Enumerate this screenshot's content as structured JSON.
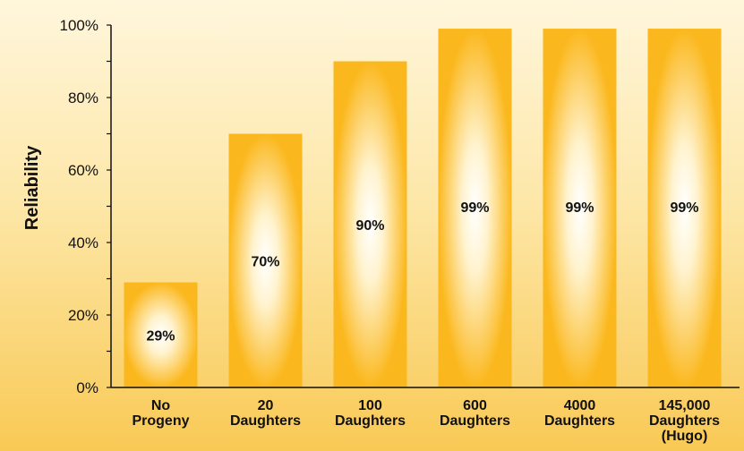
{
  "chart_data": {
    "type": "bar",
    "title": "",
    "xlabel": "",
    "ylabel": "Reliability",
    "ylim": [
      0,
      100
    ],
    "yticks": [
      0,
      20,
      40,
      60,
      80,
      100
    ],
    "ytick_labels": [
      "0%",
      "20%",
      "40%",
      "60%",
      "80%",
      "100%"
    ],
    "categories": [
      [
        "No",
        "Progeny"
      ],
      [
        "20",
        "Daughters"
      ],
      [
        "100",
        "Daughters"
      ],
      [
        "600",
        "Daughters"
      ],
      [
        "4000",
        "Daughters"
      ],
      [
        "145,000",
        "Daughters",
        "(Hugo)"
      ]
    ],
    "values": [
      29,
      70,
      90,
      99,
      99,
      99
    ],
    "value_labels": [
      "29%",
      "70%",
      "90%",
      "99%",
      "99%",
      "99%"
    ],
    "grid": false,
    "legend": "none",
    "colors": {
      "bar": "#fbb81e",
      "bar_highlight": "#ffffff",
      "axis": "#111111"
    }
  }
}
